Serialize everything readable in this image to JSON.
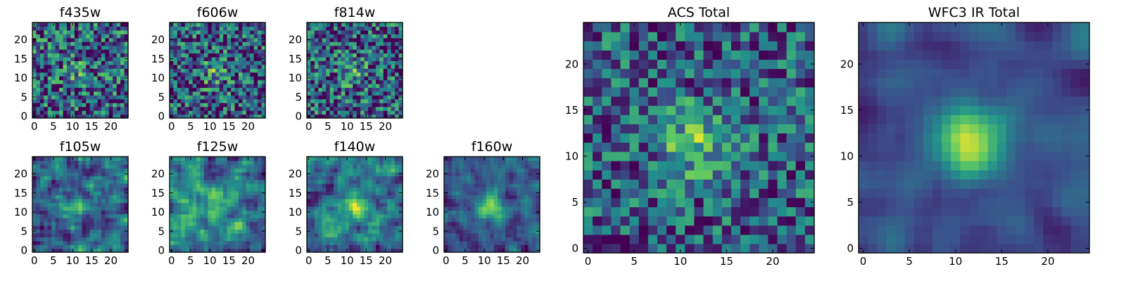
{
  "chart_data": [
    {
      "type": "heatmap",
      "title": "f435w",
      "xticks": [
        "0",
        "5",
        "10",
        "15",
        "20"
      ],
      "yticks": [
        "0",
        "5",
        "10",
        "15",
        "20"
      ],
      "xlim": [
        -0.5,
        24.5
      ],
      "ylim": [
        -0.5,
        24.5
      ],
      "grid": false,
      "seed": 11,
      "peak": 0.18,
      "noise": 0.85,
      "blob": 0.3,
      "smooth": 0
    },
    {
      "type": "heatmap",
      "title": "f606w",
      "xticks": [
        "0",
        "5",
        "10",
        "15",
        "20"
      ],
      "yticks": [
        "0",
        "5",
        "10",
        "15",
        "20"
      ],
      "xlim": [
        -0.5,
        24.5
      ],
      "ylim": [
        -0.5,
        24.5
      ],
      "grid": false,
      "seed": 23,
      "peak": 0.28,
      "noise": 0.8,
      "blob": 0.3,
      "smooth": 0
    },
    {
      "type": "heatmap",
      "title": "f814w",
      "xticks": [
        "0",
        "5",
        "10",
        "15",
        "20"
      ],
      "yticks": [
        "0",
        "5",
        "10",
        "15",
        "20"
      ],
      "xlim": [
        -0.5,
        24.5
      ],
      "ylim": [
        -0.5,
        24.5
      ],
      "grid": false,
      "seed": 37,
      "peak": 0.25,
      "noise": 0.8,
      "blob": 0.3,
      "smooth": 0
    },
    {
      "type": "heatmap",
      "title": "f105w",
      "xticks": [
        "0",
        "5",
        "10",
        "15",
        "20"
      ],
      "yticks": [
        "0",
        "5",
        "10",
        "15",
        "20"
      ],
      "xlim": [
        -0.5,
        24.5
      ],
      "ylim": [
        -0.5,
        24.5
      ],
      "grid": false,
      "seed": 41,
      "peak": 0.28,
      "noise": 0.8,
      "blob": 0.36,
      "smooth": 1
    },
    {
      "type": "heatmap",
      "title": "f125w",
      "xticks": [
        "0",
        "5",
        "10",
        "15",
        "20"
      ],
      "yticks": [
        "0",
        "5",
        "10",
        "15",
        "20"
      ],
      "xlim": [
        -0.5,
        24.5
      ],
      "ylim": [
        -0.5,
        24.5
      ],
      "grid": false,
      "seed": 53,
      "peak": 0.22,
      "noise": 0.8,
      "blob": 0.4,
      "smooth": 1
    },
    {
      "type": "heatmap",
      "title": "f140w",
      "xticks": [
        "0",
        "5",
        "10",
        "15",
        "20"
      ],
      "yticks": [
        "0",
        "5",
        "10",
        "15",
        "20"
      ],
      "xlim": [
        -0.5,
        24.5
      ],
      "ylim": [
        -0.5,
        24.5
      ],
      "grid": false,
      "seed": 67,
      "peak": 0.4,
      "noise": 0.72,
      "blob": 0.36,
      "smooth": 1
    },
    {
      "type": "heatmap",
      "title": "f160w",
      "xticks": [
        "0",
        "5",
        "10",
        "15",
        "20"
      ],
      "yticks": [
        "0",
        "5",
        "10",
        "15",
        "20"
      ],
      "xlim": [
        -0.5,
        24.5
      ],
      "ylim": [
        -0.5,
        24.5
      ],
      "grid": false,
      "seed": 79,
      "peak": 0.55,
      "noise": 0.55,
      "blob": 0.25,
      "smooth": 1
    },
    {
      "type": "heatmap",
      "title": "ACS Total",
      "xticks": [
        "0",
        "5",
        "10",
        "15",
        "20"
      ],
      "yticks": [
        "0",
        "5",
        "10",
        "15",
        "20"
      ],
      "xlim": [
        -0.5,
        24.5
      ],
      "ylim": [
        -0.5,
        24.5
      ],
      "grid": false,
      "seed": 97,
      "peak": 0.4,
      "noise": 0.65,
      "blob": 0.3,
      "smooth": 0
    },
    {
      "type": "heatmap",
      "title": "WFC3 IR Total",
      "xticks": [
        "0",
        "5",
        "10",
        "15",
        "20"
      ],
      "yticks": [
        "0",
        "5",
        "10",
        "15",
        "20"
      ],
      "xlim": [
        -0.5,
        24.5
      ],
      "ylim": [
        -0.5,
        24.5
      ],
      "grid": false,
      "seed": 113,
      "peak": 0.65,
      "noise": 0.35,
      "blob": 0.25,
      "smooth": 2
    }
  ],
  "colormap": [
    "#440154",
    "#3b528b",
    "#21918c",
    "#5ec962",
    "#fde725"
  ]
}
